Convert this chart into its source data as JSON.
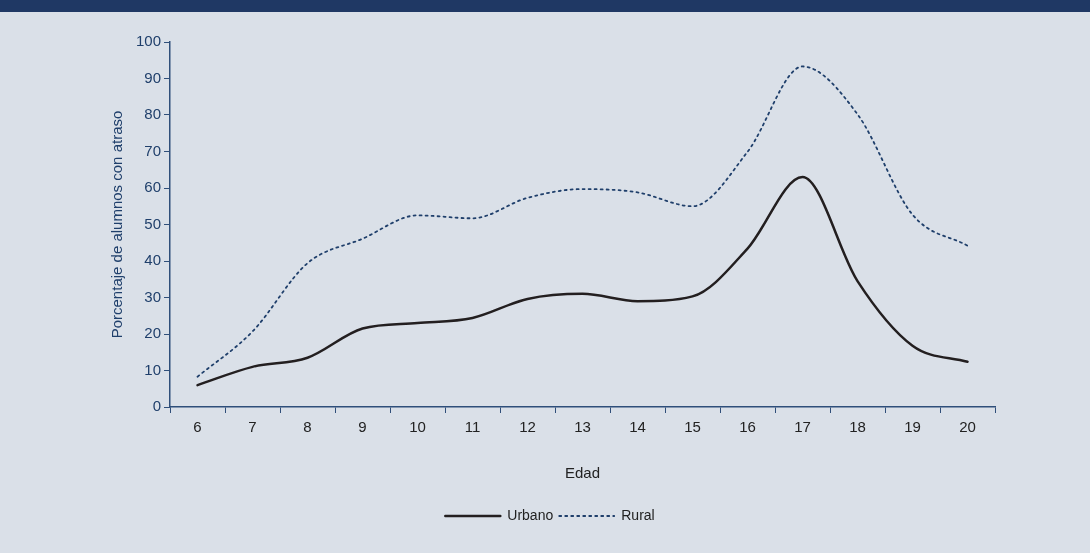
{
  "chart_data": {
    "type": "line",
    "xlabel": "Edad",
    "ylabel": "Porcentaje de alumnos con atraso",
    "categories": [
      "6",
      "7",
      "8",
      "9",
      "10",
      "11",
      "12",
      "13",
      "14",
      "15",
      "16",
      "17",
      "18",
      "19",
      "20"
    ],
    "series": [
      {
        "name": "Urbano",
        "color": "#231f20",
        "line_style": "solid",
        "values": [
          6,
          11,
          13.5,
          21.5,
          23,
          24.4,
          29.6,
          31,
          29,
          30.3,
          43.4,
          63,
          34.5,
          16.8,
          12.4
        ]
      },
      {
        "name": "Rural",
        "color": "#1f3f6b",
        "line_style": "dotted",
        "values": [
          8.3,
          20.7,
          39.4,
          46.1,
          52.5,
          51.7,
          57.3,
          59.7,
          58.8,
          55,
          69.9,
          93.3,
          80.2,
          52.7,
          44.2
        ]
      }
    ],
    "ylim": [
      0,
      100
    ],
    "yticks": [
      0,
      10,
      20,
      30,
      40,
      50,
      60,
      70,
      80,
      90,
      100
    ],
    "grid": false,
    "legend": "bottom",
    "marker": "none"
  }
}
